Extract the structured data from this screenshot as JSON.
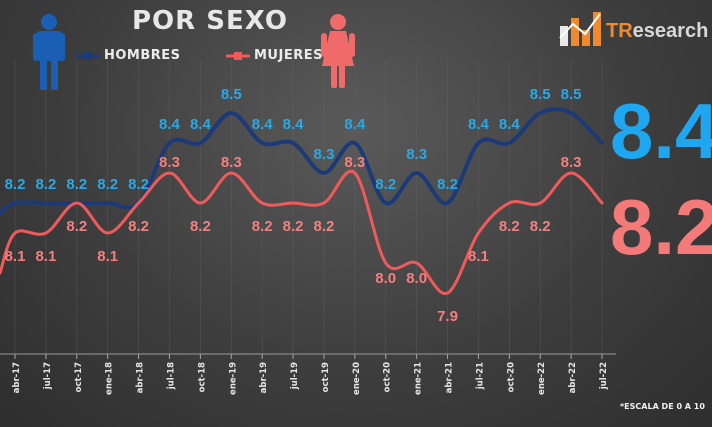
{
  "header": {
    "title": "POR SEXO",
    "logo": "TResearch",
    "logo_prefix": "TR",
    "logo_suffix": "esearch"
  },
  "legend": {
    "hombres": "HOMBRES",
    "mujeres": "MUJERES"
  },
  "latest": {
    "hombres": "8.4",
    "mujeres": "8.2"
  },
  "footnote": "*ESCALA DE 0 A 10",
  "colors": {
    "hombres_line": "#1c3a78",
    "hombres_label": "#29a8e6",
    "mujeres_line": "#f05a5a",
    "mujeres_label": "#f57f7f",
    "big_hombres": "#1ea7f0",
    "big_mujeres": "#f47a7a"
  },
  "icons": {
    "male": "male-figure-icon",
    "female": "female-figure-icon",
    "logo": "bar-chart-logo-icon"
  },
  "chart_data": {
    "type": "line",
    "title": "POR SEXO",
    "xlabel": "",
    "ylabel": "",
    "categories": [
      "abr-17",
      "jul-17",
      "oct-17",
      "ene-18",
      "abr-18",
      "jul-18",
      "oct-18",
      "ene-19",
      "abr-19",
      "jul-19",
      "oct-19",
      "ene-20",
      "oct-20",
      "ene-21",
      "abr-21",
      "jul-21",
      "oct-20",
      "ene-22",
      "abr-22",
      "jul-22"
    ],
    "series": [
      {
        "name": "HOMBRES",
        "values": [
          8.2,
          8.2,
          8.2,
          8.2,
          8.2,
          8.4,
          8.4,
          8.5,
          8.4,
          8.4,
          8.3,
          8.4,
          8.2,
          8.3,
          8.2,
          8.4,
          8.4,
          8.5,
          8.5,
          8.4
        ],
        "labels": [
          "8.2",
          "8.2",
          "8.2",
          "8.2",
          "8.2",
          "8.4",
          "8.4",
          "8.5",
          "8.4",
          "8.4",
          "8.3",
          "8.4",
          "8.2",
          "8.3",
          "8.2",
          "8.4",
          "8.4",
          "8.5",
          "8.5",
          ""
        ]
      },
      {
        "name": "MUJERES",
        "values": [
          8.1,
          8.1,
          8.2,
          8.1,
          8.2,
          8.3,
          8.2,
          8.3,
          8.2,
          8.2,
          8.2,
          8.3,
          8.0,
          8.0,
          7.9,
          8.1,
          8.2,
          8.2,
          8.3,
          8.2
        ],
        "labels": [
          "8.1",
          "8.1",
          "8.2",
          "8.1",
          "8.2",
          "8.3",
          "8.2",
          "8.3",
          "8.2",
          "8.2",
          "8.2",
          "8.3",
          "8.0",
          "8.0",
          "7.9",
          "8.1",
          "8.2",
          "8.2",
          "8.3",
          ""
        ]
      }
    ],
    "ylim": [
      7.7,
      8.8
    ],
    "grid": true,
    "legend_position": "top-left"
  }
}
